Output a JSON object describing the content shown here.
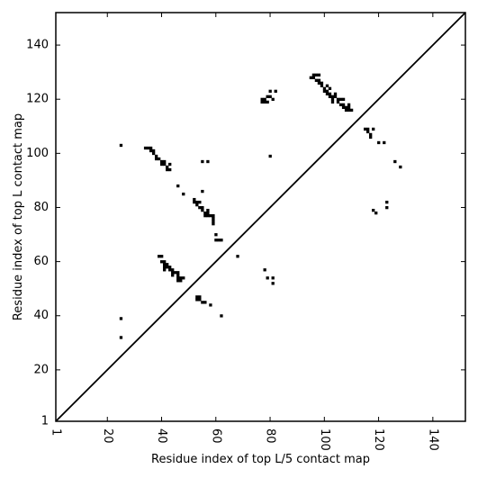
{
  "chart_data": {
    "type": "scatter",
    "title": "",
    "xlabel": "Residue index of top L/5 contact map",
    "ylabel": "Residue index of top L contact map",
    "xlim": [
      1,
      152
    ],
    "ylim": [
      1,
      152
    ],
    "xticks": [
      1,
      20,
      40,
      60,
      80,
      100,
      120,
      140
    ],
    "yticks": [
      1,
      20,
      40,
      60,
      80,
      100,
      120,
      140
    ],
    "xtick_labels": [
      "1",
      "20",
      "40",
      "60",
      "80",
      "100",
      "120",
      "140"
    ],
    "ytick_labels": [
      "1",
      "20",
      "40",
      "60",
      "80",
      "100",
      "120",
      "140"
    ],
    "xtick_rotation": "vertical",
    "grid": false,
    "legend": "none",
    "diagonal": {
      "from": [
        1,
        1
      ],
      "to": [
        152,
        152
      ]
    },
    "marker": "square",
    "colors": {
      "points": "#000000",
      "frame": "#000000",
      "background": "#ffffff"
    },
    "series": [
      {
        "points": [
          [
            34,
            102
          ],
          [
            35,
            102
          ],
          [
            36,
            102
          ],
          [
            36,
            101
          ],
          [
            37,
            101
          ],
          [
            37,
            100
          ],
          [
            38,
            99
          ],
          [
            38,
            98
          ],
          [
            39,
            98
          ],
          [
            40,
            97
          ],
          [
            40,
            96
          ],
          [
            41,
            96
          ],
          [
            41,
            97
          ],
          [
            42,
            95
          ],
          [
            42,
            94
          ],
          [
            43,
            94
          ],
          [
            43,
            96
          ],
          [
            25,
            103
          ],
          [
            46,
            88
          ],
          [
            48,
            85
          ],
          [
            52,
            83
          ],
          [
            52,
            82
          ],
          [
            53,
            82
          ],
          [
            53,
            81
          ],
          [
            54,
            80
          ],
          [
            55,
            80
          ],
          [
            55,
            79
          ],
          [
            56,
            78
          ],
          [
            56,
            77
          ],
          [
            57,
            77
          ],
          [
            57,
            78
          ],
          [
            57,
            79
          ],
          [
            58,
            77
          ],
          [
            59,
            77
          ],
          [
            59,
            76
          ],
          [
            59,
            75
          ],
          [
            59,
            74
          ],
          [
            54,
            82
          ],
          [
            55,
            86
          ],
          [
            55,
            97
          ],
          [
            57,
            97
          ],
          [
            60,
            70
          ],
          [
            60,
            68
          ],
          [
            61,
            68
          ],
          [
            62,
            68
          ],
          [
            39,
            62
          ],
          [
            40,
            62
          ],
          [
            40,
            60
          ],
          [
            41,
            60
          ],
          [
            41,
            59
          ],
          [
            42,
            59
          ],
          [
            42,
            58
          ],
          [
            41,
            58
          ],
          [
            41,
            57
          ],
          [
            43,
            58
          ],
          [
            43,
            57
          ],
          [
            44,
            57
          ],
          [
            44,
            56
          ],
          [
            44,
            55
          ],
          [
            45,
            56
          ],
          [
            46,
            56
          ],
          [
            46,
            55
          ],
          [
            46,
            54
          ],
          [
            47,
            54
          ],
          [
            46,
            53
          ],
          [
            47,
            53
          ],
          [
            48,
            54
          ],
          [
            53,
            47
          ],
          [
            53,
            46
          ],
          [
            54,
            47
          ],
          [
            54,
            46
          ],
          [
            55,
            45
          ],
          [
            56,
            45
          ],
          [
            58,
            44
          ],
          [
            62,
            40
          ],
          [
            68,
            62
          ],
          [
            25,
            39
          ],
          [
            25,
            32
          ],
          [
            78,
            57
          ],
          [
            79,
            54
          ],
          [
            81,
            54
          ],
          [
            81,
            52
          ],
          [
            77,
            120
          ],
          [
            77,
            119
          ],
          [
            78,
            119
          ],
          [
            78,
            120
          ],
          [
            79,
            119
          ],
          [
            79,
            121
          ],
          [
            80,
            121
          ],
          [
            80,
            123
          ],
          [
            81,
            120
          ],
          [
            82,
            123
          ],
          [
            80,
            99
          ],
          [
            95,
            128
          ],
          [
            96,
            128
          ],
          [
            96,
            129
          ],
          [
            97,
            129
          ],
          [
            97,
            127
          ],
          [
            98,
            129
          ],
          [
            98,
            127
          ],
          [
            98,
            126
          ],
          [
            99,
            126
          ],
          [
            99,
            125
          ],
          [
            100,
            124
          ],
          [
            100,
            123
          ],
          [
            101,
            125
          ],
          [
            101,
            123
          ],
          [
            101,
            122
          ],
          [
            102,
            124
          ],
          [
            102,
            122
          ],
          [
            102,
            121
          ],
          [
            103,
            121
          ],
          [
            103,
            120
          ],
          [
            104,
            122
          ],
          [
            104,
            121
          ],
          [
            105,
            120
          ],
          [
            105,
            119
          ],
          [
            106,
            120
          ],
          [
            106,
            118
          ],
          [
            107,
            118
          ],
          [
            107,
            120
          ],
          [
            107,
            117
          ],
          [
            108,
            116
          ],
          [
            108,
            117
          ],
          [
            109,
            118
          ],
          [
            109,
            117
          ],
          [
            109,
            116
          ],
          [
            110,
            116
          ],
          [
            103,
            119
          ],
          [
            115,
            109
          ],
          [
            116,
            109
          ],
          [
            116,
            108
          ],
          [
            117,
            107
          ],
          [
            117,
            106
          ],
          [
            118,
            109
          ],
          [
            120,
            104
          ],
          [
            122,
            104
          ],
          [
            126,
            97
          ],
          [
            128,
            95
          ],
          [
            123,
            82
          ],
          [
            123,
            80
          ],
          [
            118,
            79
          ],
          [
            119,
            78
          ]
        ]
      }
    ]
  }
}
